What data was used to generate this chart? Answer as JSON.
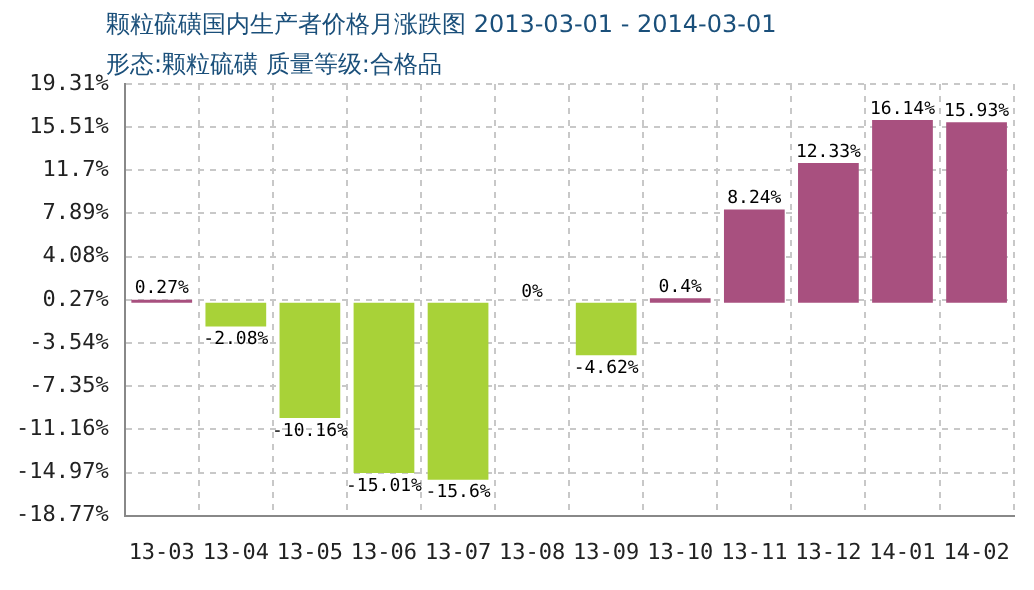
{
  "chart_data": {
    "type": "bar",
    "title": "颗粒硫磺国内生产者价格月涨跌图 2013-03-01 - 2014-03-01",
    "subtitle": "形态:颗粒硫磺 质量等级:合格品",
    "categories": [
      "13-03",
      "13-04",
      "13-05",
      "13-06",
      "13-07",
      "13-08",
      "13-09",
      "13-10",
      "13-11",
      "13-12",
      "14-01",
      "14-02"
    ],
    "values": [
      0.27,
      -2.08,
      -10.16,
      -15.01,
      -15.6,
      0,
      -4.62,
      0.4,
      8.24,
      12.33,
      16.14,
      15.93
    ],
    "value_labels": [
      "0.27%",
      "-2.08%",
      "-10.16%",
      "-15.01%",
      "-15.6%",
      "0%",
      "-4.62%",
      "0.4%",
      "8.24%",
      "12.33%",
      "16.14%",
      "15.93%"
    ],
    "colors": [
      "#a8507f",
      "#a8d238",
      "#a8d238",
      "#a8d238",
      "#a8d238",
      "#a8507f",
      "#a8d238",
      "#a8507f",
      "#a8507f",
      "#a8507f",
      "#a8507f",
      "#a8507f"
    ],
    "ylim": [
      -18.77,
      19.31
    ],
    "yticks": [
      {
        "value": 19.31,
        "label": "19.31%"
      },
      {
        "value": 15.51,
        "label": "15.51%"
      },
      {
        "value": 11.7,
        "label": "11.7%"
      },
      {
        "value": 7.89,
        "label": "7.89%"
      },
      {
        "value": 4.08,
        "label": "4.08%"
      },
      {
        "value": 0.27,
        "label": "0.27%"
      },
      {
        "value": -3.54,
        "label": "-3.54%"
      },
      {
        "value": -7.35,
        "label": "-7.35%"
      },
      {
        "value": -11.16,
        "label": "-11.16%"
      },
      {
        "value": -14.97,
        "label": "-14.97%"
      },
      {
        "value": -18.77,
        "label": "-18.77%"
      }
    ],
    "grid": true,
    "legend": false
  }
}
